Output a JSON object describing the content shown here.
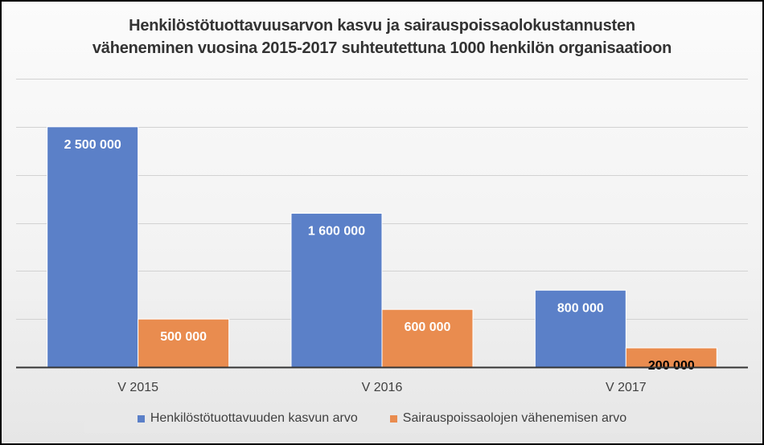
{
  "chart_data": {
    "type": "bar",
    "title_lines": [
      "Henkilöstötuottavuusarvon kasvu ja sairauspoissaolokustannusten",
      "väheneminen vuosina 2015-2017 suhteutettuna 1000 henkilön organisaatioon"
    ],
    "categories": [
      "V 2015",
      "V 2016",
      "V 2017"
    ],
    "series": [
      {
        "name": "Henkilöstötuottavuuden kasvun arvo",
        "values": [
          2500000,
          1600000,
          800000
        ],
        "labels": [
          "2 500 000",
          "1 600 000",
          "800 000"
        ],
        "color": "#5b80c8",
        "label_color": "#ffffff"
      },
      {
        "name": "Sairauspoissaolojen vähenemisen arvo",
        "values": [
          500000,
          600000,
          200000
        ],
        "labels": [
          "500 000",
          "600 000",
          "200 000"
        ],
        "color": "#e98c4f",
        "label_color": "#ffffff",
        "label_color_overrides": {
          "2": "#000000"
        }
      }
    ],
    "ylim": [
      0,
      3000000
    ],
    "y_tick_step": 500000,
    "y_tick_labels_visible": false,
    "grid": true,
    "legend_position": "bottom"
  }
}
